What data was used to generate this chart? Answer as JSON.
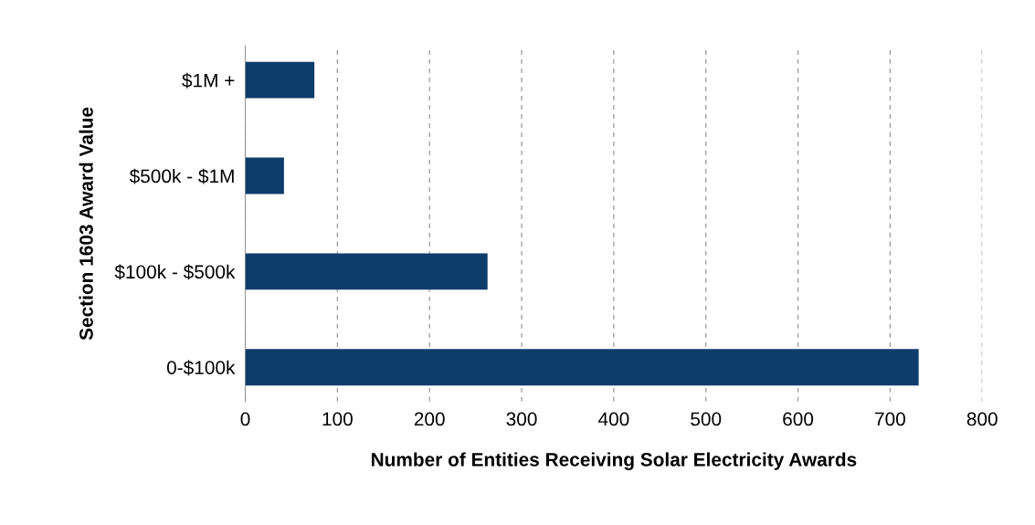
{
  "chart_data": {
    "type": "bar",
    "orientation": "horizontal",
    "categories": [
      "$1M +",
      "$500k - $1M",
      "$100k - $500k",
      "0-$100k"
    ],
    "values": [
      75,
      42,
      263,
      731
    ],
    "color": "#0f3d6b",
    "xlabel": "Number of Entities Receiving Solar Electricity Awards",
    "ylabel": "Section 1603 Award Value",
    "xlim": [
      0,
      800
    ],
    "xticks": [
      0,
      100,
      200,
      300,
      400,
      500,
      600,
      700,
      800
    ],
    "grid": "x",
    "legend": false
  }
}
